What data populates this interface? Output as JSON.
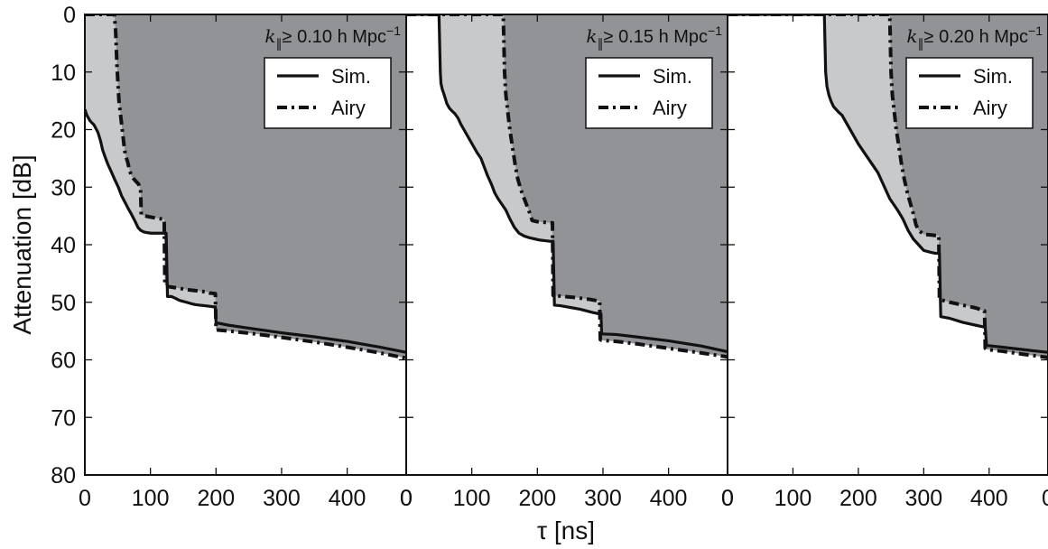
{
  "figure": {
    "ylabel": "Attenuation [dB]",
    "xlabel": "τ [ns]"
  },
  "colors": {
    "outer_fill": "#c8c9cb",
    "inner_fill": "#929396",
    "line": "#111111",
    "background": "#ffffff"
  },
  "chart_data": [
    {
      "type": "area",
      "title": "k∥≥ 0.10 h Mpc⁻¹",
      "title_parts": {
        "k": "k",
        "sub": "∥",
        "rest": "≥ 0.10 h Mpc",
        "sup": "−1"
      },
      "xlabel": "τ [ns]",
      "ylabel": "Attenuation [dB]",
      "xlim": [
        0,
        490
      ],
      "ylim": [
        80,
        0
      ],
      "xticks": [
        0,
        100,
        200,
        300,
        400
      ],
      "yticks": [
        0,
        10,
        20,
        30,
        40,
        50,
        60,
        70,
        80
      ],
      "legend": {
        "position": "top-right",
        "entries": [
          "Sim.",
          "Airy"
        ]
      },
      "grid": false,
      "series": [
        {
          "name": "Sim.",
          "style": "solid",
          "x": [
            0,
            3,
            8,
            14,
            20,
            24,
            27,
            31,
            35,
            41,
            46,
            51,
            56,
            62,
            66,
            71,
            76,
            81,
            85,
            90,
            95,
            101,
            106,
            112,
            117,
            122,
            123,
            124,
            126,
            132,
            138,
            143,
            148,
            155,
            161,
            168,
            175,
            183,
            190,
            197,
            198,
            199,
            200,
            202,
            220,
            250,
            300,
            350,
            400,
            450,
            490
          ],
          "y": [
            16.5,
            17.5,
            18.5,
            19.2,
            20.5,
            22.0,
            23.5,
            24.8,
            26.0,
            27.5,
            28.8,
            30.0,
            31.5,
            32.8,
            33.7,
            34.7,
            35.8,
            37.0,
            37.5,
            37.8,
            37.9,
            38.0,
            38.0,
            38.0,
            38.0,
            38.0,
            38.0,
            38.0,
            49.0,
            49.0,
            49.3,
            49.6,
            49.8,
            50.0,
            50.2,
            50.4,
            50.5,
            50.6,
            50.7,
            50.8,
            50.8,
            50.8,
            53.5,
            53.6,
            54.0,
            54.5,
            55.3,
            56.0,
            56.8,
            57.8,
            58.7
          ]
        },
        {
          "name": "Airy",
          "style": "dashdot",
          "x": [
            0,
            45,
            47,
            48,
            49,
            50,
            51,
            52,
            54,
            56,
            58,
            60,
            62,
            65,
            68,
            71,
            74,
            78,
            82,
            85,
            86,
            92,
            100,
            110,
            121,
            122,
            124,
            126,
            128,
            140,
            155,
            170,
            185,
            190,
            199,
            200,
            201,
            220,
            260,
            300,
            350,
            400,
            450,
            490
          ],
          "y": [
            0,
            0,
            3,
            6,
            9,
            11,
            13,
            15,
            17,
            19,
            21,
            23,
            24.5,
            25.5,
            27.0,
            28.0,
            28.5,
            29.0,
            29.5,
            30.5,
            34.8,
            35.0,
            35.2,
            35.4,
            35.6,
            47.0,
            47.1,
            47.2,
            47.3,
            47.5,
            47.8,
            48.0,
            48.2,
            48.4,
            48.5,
            54.8,
            54.8,
            55.0,
            55.5,
            56.1,
            56.9,
            57.8,
            58.8,
            59.7
          ]
        }
      ]
    },
    {
      "type": "area",
      "title": "k∥≥ 0.15 h Mpc⁻¹",
      "title_parts": {
        "k": "k",
        "sub": "∥",
        "rest": "≥ 0.15 h Mpc",
        "sup": "−1"
      },
      "xlabel": "τ [ns]",
      "ylabel": "Attenuation [dB]",
      "xlim": [
        0,
        490
      ],
      "ylim": [
        80,
        0
      ],
      "xticks": [
        0,
        100,
        200,
        300,
        400
      ],
      "yticks": [
        0,
        10,
        20,
        30,
        40,
        50,
        60,
        70,
        80
      ],
      "legend": {
        "position": "top-right",
        "entries": [
          "Sim.",
          "Airy"
        ]
      },
      "grid": false,
      "series": [
        {
          "name": "Sim.",
          "style": "solid",
          "x": [
            0,
            50,
            51,
            52,
            53,
            55,
            58,
            62,
            66,
            70,
            74,
            79,
            83,
            88,
            93,
            98,
            103,
            108,
            114,
            119,
            124,
            130,
            135,
            140,
            146,
            152,
            158,
            165,
            172,
            180,
            188,
            196,
            204,
            212,
            219,
            222,
            223,
            224,
            226,
            235,
            245,
            255,
            265,
            275,
            285,
            294,
            295,
            296,
            297,
            298,
            320,
            350,
            400,
            450,
            490
          ],
          "y": [
            0,
            0,
            5,
            10,
            12.0,
            13.0,
            14.0,
            15.5,
            16.3,
            16.8,
            17.2,
            18.0,
            19.0,
            20.0,
            21.0,
            22.0,
            23.0,
            24.0,
            25.0,
            26.5,
            28.0,
            29.5,
            31.0,
            32.0,
            33.0,
            34.0,
            35.5,
            37.0,
            38.0,
            38.5,
            38.8,
            39.0,
            39.2,
            39.3,
            39.4,
            39.4,
            39.4,
            39.4,
            50.5,
            50.6,
            50.8,
            51.0,
            51.2,
            51.5,
            51.8,
            52.0,
            52.0,
            52.0,
            52.0,
            55.5,
            55.6,
            56.0,
            56.7,
            57.6,
            58.6
          ]
        },
        {
          "name": "Airy",
          "style": "dashdot",
          "x": [
            0,
            148,
            149,
            150,
            152,
            155,
            158,
            162,
            166,
            170,
            175,
            180,
            185,
            190,
            192,
            200,
            210,
            220,
            222,
            223,
            224,
            240,
            260,
            280,
            294,
            295,
            296,
            298,
            320,
            350,
            400,
            450,
            490
          ],
          "y": [
            0,
            0,
            5,
            10,
            14,
            17,
            20,
            23,
            26,
            28.5,
            30.5,
            32.0,
            33.5,
            35.0,
            35.8,
            36.0,
            36.1,
            36.2,
            36.2,
            36.2,
            48.8,
            49.0,
            49.2,
            49.5,
            49.8,
            49.8,
            56.5,
            56.6,
            56.8,
            57.2,
            58.0,
            58.8,
            59.5
          ]
        }
      ]
    },
    {
      "type": "area",
      "title": "k∥≥ 0.20 h Mpc⁻¹",
      "title_parts": {
        "k": "k",
        "sub": "∥",
        "rest": "≥ 0.20 h Mpc",
        "sup": "−1"
      },
      "xlabel": "τ [ns]",
      "ylabel": "Attenuation [dB]",
      "xlim": [
        0,
        490
      ],
      "ylim": [
        80,
        0
      ],
      "xticks": [
        0,
        100,
        200,
        300,
        400
      ],
      "yticks": [
        0,
        10,
        20,
        30,
        40,
        50,
        60,
        70,
        80
      ],
      "legend": {
        "position": "top-right",
        "entries": [
          "Sim.",
          "Airy"
        ]
      },
      "grid": false,
      "series": [
        {
          "name": "Sim.",
          "style": "solid",
          "x": [
            0,
            148,
            149,
            150,
            152,
            155,
            158,
            162,
            166,
            170,
            175,
            180,
            185,
            190,
            195,
            200,
            206,
            212,
            218,
            224,
            230,
            236,
            242,
            248,
            254,
            260,
            268,
            276,
            284,
            292,
            300,
            310,
            318,
            322,
            323,
            324,
            326,
            340,
            360,
            380,
            392,
            393,
            394,
            396,
            420,
            450,
            490
          ],
          "y": [
            0,
            0,
            5,
            10,
            12.5,
            14.0,
            15.0,
            16.0,
            16.5,
            17.0,
            17.5,
            18.5,
            19.5,
            20.5,
            21.5,
            22.5,
            23.5,
            24.5,
            25.5,
            26.5,
            27.5,
            29.0,
            30.5,
            32.0,
            33.0,
            34.0,
            35.5,
            37.5,
            39.0,
            40.0,
            41.0,
            41.3,
            41.5,
            41.5,
            41.5,
            41.5,
            52.5,
            52.8,
            53.5,
            54.0,
            54.3,
            54.3,
            54.3,
            57.5,
            57.8,
            58.2,
            58.7
          ]
        },
        {
          "name": "Airy",
          "style": "dashdot",
          "x": [
            0,
            248,
            249,
            250,
            252,
            255,
            258,
            262,
            266,
            270,
            275,
            280,
            285,
            288,
            292,
            300,
            310,
            318,
            322,
            323,
            324,
            340,
            360,
            380,
            392,
            393,
            394,
            396,
            420,
            450,
            490
          ],
          "y": [
            0,
            0,
            5,
            10,
            14,
            17,
            20,
            23,
            26,
            28.5,
            31.0,
            33.0,
            35.0,
            36.5,
            37.5,
            38.2,
            38.3,
            38.4,
            38.4,
            38.4,
            49.5,
            50.0,
            50.5,
            51.0,
            51.5,
            51.5,
            58.0,
            58.2,
            58.5,
            59.0,
            59.6
          ]
        }
      ]
    }
  ]
}
